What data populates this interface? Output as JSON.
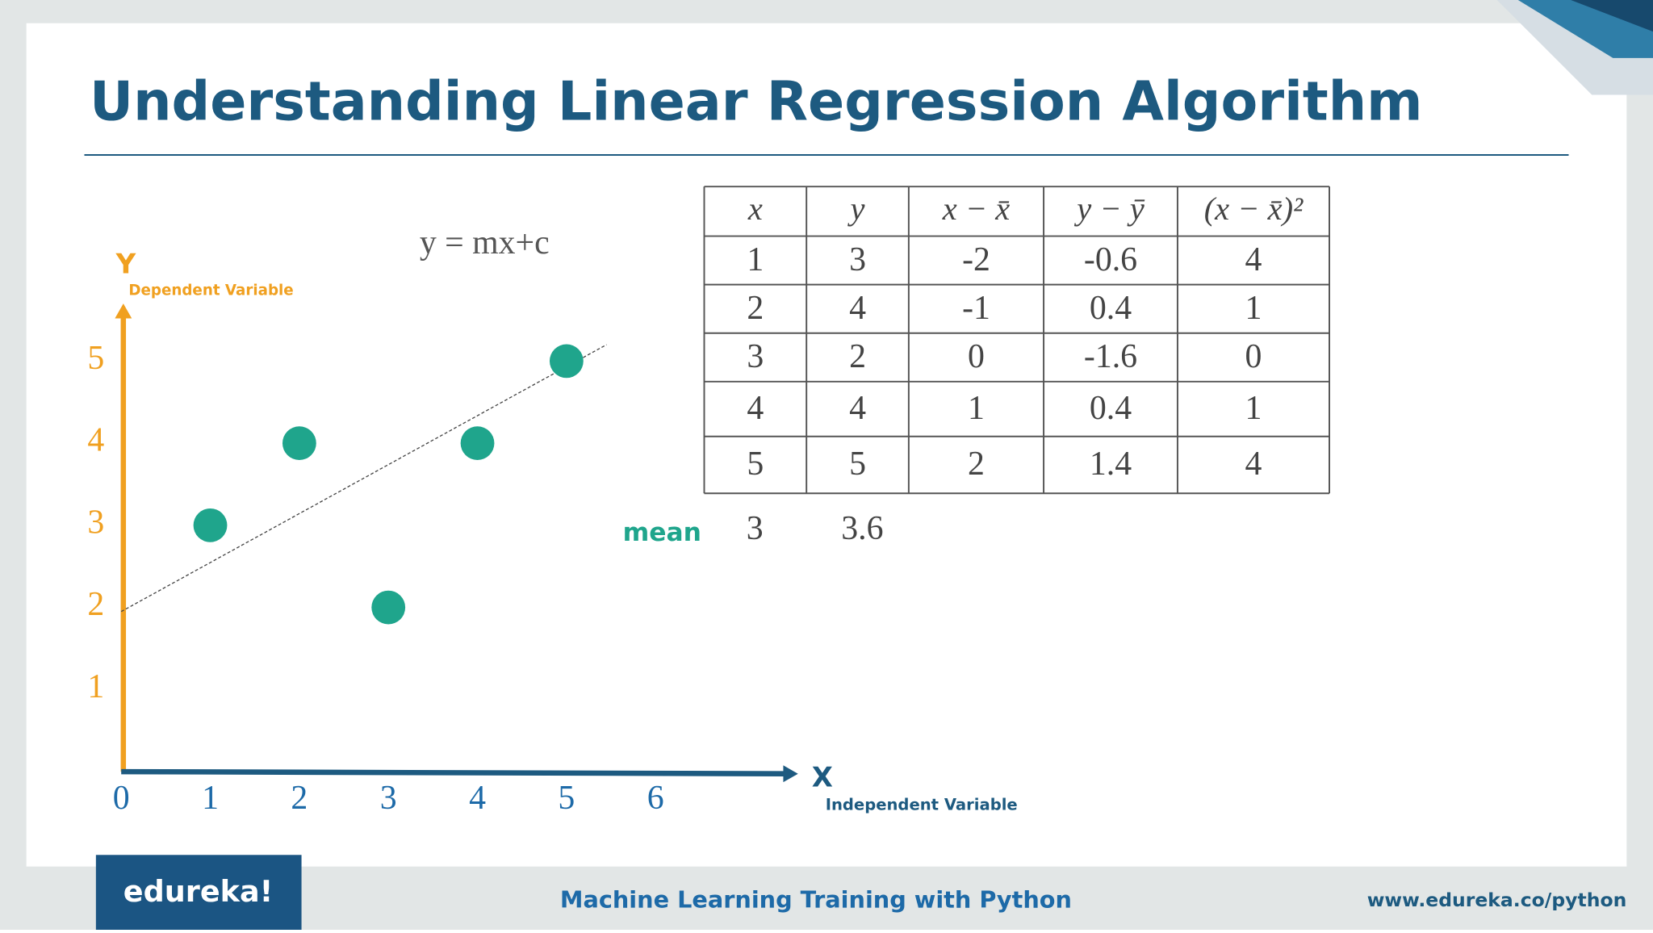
{
  "header": {
    "title": "Understanding Linear Regression Algorithm"
  },
  "equation": "y = mx+c",
  "chart_data": {
    "type": "scatter",
    "x": [
      1,
      2,
      3,
      4,
      5
    ],
    "values": [
      3,
      4,
      2,
      4,
      5
    ],
    "color": "#1fa58c",
    "xlim": [
      0,
      7.6
    ],
    "ylim": [
      0,
      5.7
    ],
    "xticks": [
      0,
      1,
      2,
      3,
      4,
      5,
      6
    ],
    "yticks": [
      1,
      2,
      3,
      4,
      5
    ],
    "xlabel": "X",
    "xlabel_sub": "Independent Variable",
    "ylabel": "Y",
    "ylabel_sub": "Dependent Variable",
    "trend_line": {
      "x": [
        0,
        5.45
      ],
      "values": [
        1.95,
        5.2
      ]
    }
  },
  "table": {
    "header": [
      "x",
      "y",
      "x − x̄",
      "y − ȳ",
      "(x − x̄)²"
    ],
    "rows": [
      [
        1,
        3,
        -2,
        -0.6,
        4
      ],
      [
        2,
        4,
        -1,
        0.4,
        1
      ],
      [
        3,
        2,
        0,
        -1.6,
        0
      ],
      [
        4,
        4,
        1,
        0.4,
        1
      ],
      [
        5,
        5,
        2,
        1.4,
        4
      ]
    ],
    "mean": {
      "label": "mean",
      "values": [
        3,
        3.6
      ]
    }
  },
  "footer": {
    "logo": "edureka!",
    "course": "Machine Learning Training with Python",
    "url": "www.edureka.co/python"
  }
}
